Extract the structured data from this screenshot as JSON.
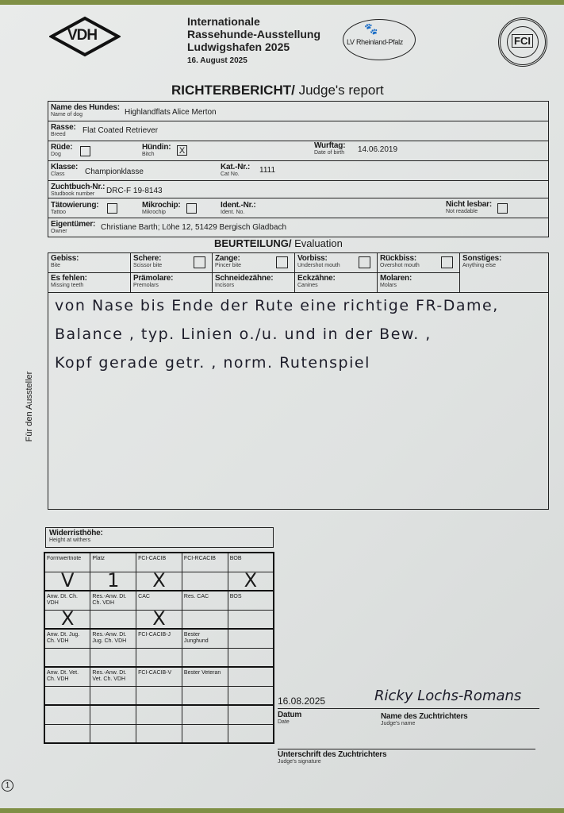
{
  "header": {
    "vdh_logo": "VDH",
    "title_lines": [
      "Internationale",
      "Rassehunde-Ausstellung",
      "Ludwigshafen 2025"
    ],
    "date": "16. August 2025",
    "lv_logo": "LV Rheinland-Pfalz",
    "fci_logo": "FCI"
  },
  "report_title": {
    "bold": "RICHTERBERICHT/",
    "light": "Judge's report"
  },
  "dog": {
    "name": {
      "label": "Name des Hundes:",
      "sub": "Name of dog",
      "value": "Highlandflats Alice Merton"
    },
    "breed": {
      "label": "Rasse:",
      "sub": "Breed",
      "value": "Flat Coated Retriever"
    },
    "male": {
      "label": "Rüde:",
      "sub": "Dog",
      "checked": false,
      "value": ""
    },
    "female": {
      "label": "Hündin:",
      "sub": "Bitch",
      "checked": true,
      "value": "X"
    },
    "dob": {
      "label": "Wurftag:",
      "sub": "Date of birth",
      "value": "14.06.2019"
    },
    "class": {
      "label": "Klasse:",
      "sub": "Class",
      "value": "Championklasse"
    },
    "cat_no": {
      "label": "Kat.-Nr.:",
      "sub": "Cat No.",
      "value": "1111"
    },
    "studbook": {
      "label": "Zuchtbuch-Nr.:",
      "sub": "Studbook number",
      "value": "DRC-F 19-8143"
    },
    "tattoo": {
      "label": "Tätowierung:",
      "sub": "Tattoo"
    },
    "chip": {
      "label": "Mikrochip:",
      "sub": "Mikrochip"
    },
    "ident": {
      "label": "Ident.-Nr.:",
      "sub": "Ident. No."
    },
    "unreadable": {
      "label": "Nicht lesbar:",
      "sub": "Not readable"
    },
    "owner": {
      "label": "Eigentümer:",
      "sub": "Owner",
      "value": "Christiane Barth; Löhe 12, 51429 Bergisch Gladbach"
    }
  },
  "evaluation": {
    "title_bold": "BEURTEILUNG/",
    "title_light": "Evaluation",
    "row1": [
      {
        "label": "Gebiss:",
        "sub": "Bite"
      },
      {
        "label": "Schere:",
        "sub": "Scissor bite"
      },
      {
        "label": "Zange:",
        "sub": "Pincer bite"
      },
      {
        "label": "Vorbiss:",
        "sub": "Undershot mouth"
      },
      {
        "label": "Rückbiss:",
        "sub": "Overshot mouth"
      },
      {
        "label": "Sonstiges:",
        "sub": "Anything else"
      }
    ],
    "row2": [
      {
        "label": "Es fehlen:",
        "sub": "Missing teeth"
      },
      {
        "label": "Prämolare:",
        "sub": "Premolars"
      },
      {
        "label": "Schneidezähne:",
        "sub": "Incisors"
      },
      {
        "label": "Eckzähne:",
        "sub": "Canines"
      },
      {
        "label": "Molaren:",
        "sub": "Molars"
      }
    ],
    "text_lines": [
      "von Nase bis Ende der Rute eine richtige FR-Dame,",
      "Balance , typ. Linien o./u. und in der Bew. ,",
      "Kopf gerade getr. , norm. Rutenspiel"
    ]
  },
  "side_label": "Für den Aussteller",
  "withers": {
    "label": "Widerristhöhe:",
    "sub": "Height at withers"
  },
  "results": {
    "rows": [
      {
        "labels": [
          "Formwertnote",
          "Platz",
          "FCI-CACIB",
          "FCI-RCACIB",
          "BOB"
        ],
        "marks": [
          "V",
          "1",
          "X",
          "",
          "X"
        ]
      },
      {
        "labels": [
          "Anw. Dt. Ch. VDH",
          "Res.-Anw. Dt. Ch. VDH",
          "CAC",
          "Res. CAC",
          "BOS"
        ],
        "marks": [
          "X",
          "",
          "X",
          "",
          ""
        ]
      },
      {
        "labels": [
          "Anw. Dt. Jug. Ch. VDH",
          "Res.-Anw. Dt. Jug. Ch. VDH",
          "FCI-CACIB-J",
          "Bester Junghund",
          ""
        ],
        "marks": [
          "",
          "",
          "",
          "",
          ""
        ]
      },
      {
        "labels": [
          "Anw. Dt. Vet. Ch. VDH",
          "Res.-Anw. Dt. Vet. Ch. VDH",
          "FCI-CACIB-V",
          "Bester Veteran",
          ""
        ],
        "marks": [
          "",
          "",
          "",
          "",
          ""
        ]
      }
    ]
  },
  "footer": {
    "date_value": "16.08.2025",
    "date_label": "Datum",
    "date_sub": "Date",
    "judge_value": "Ricky Lochs-Romans",
    "judge_label": "Name des Zuchtrichters",
    "judge_sub": "Judge's name",
    "sig_label": "Unterschrift des Zuchtrichters",
    "sig_sub": "Judge's signature",
    "page_marker": "1"
  }
}
